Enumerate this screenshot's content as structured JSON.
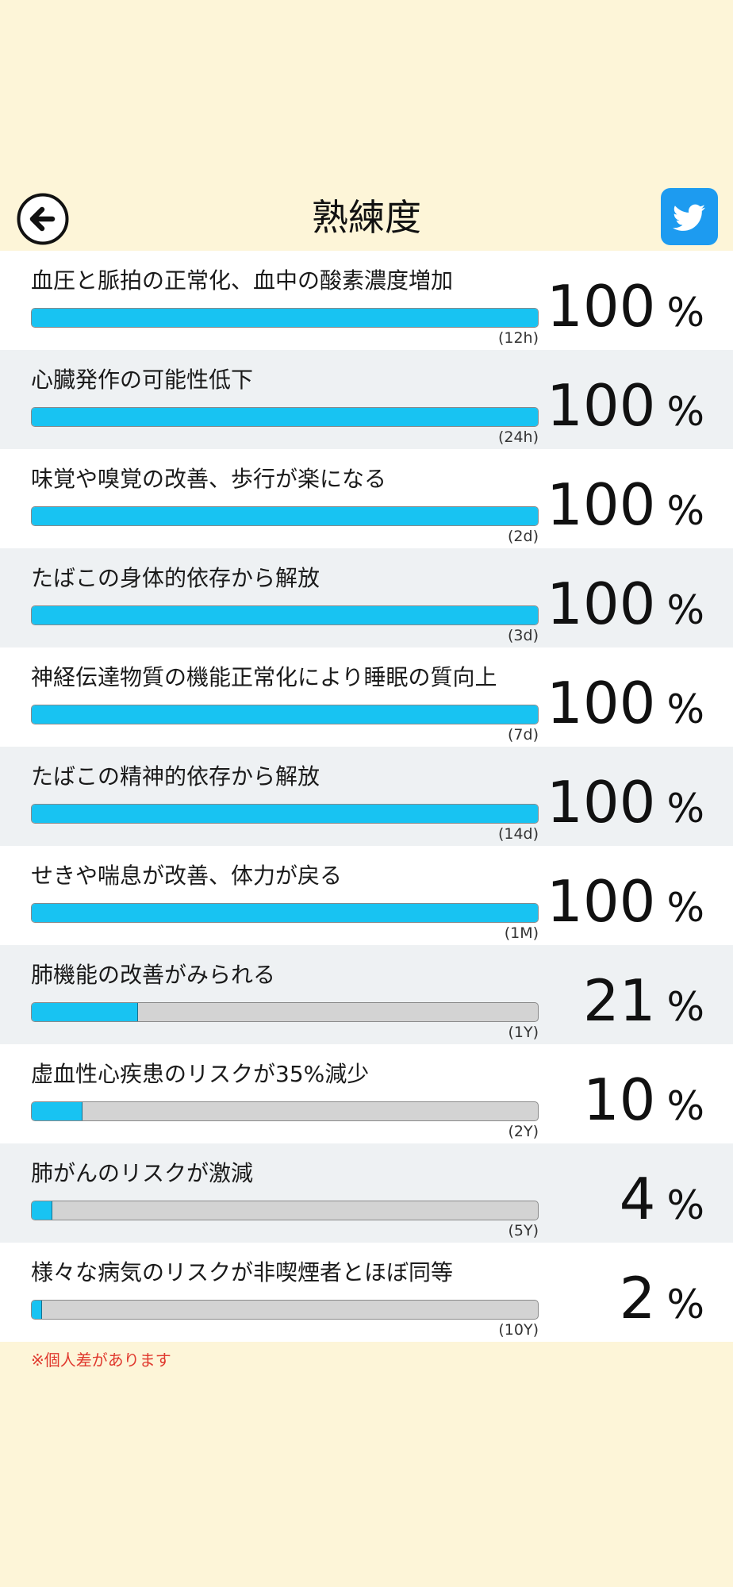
{
  "header": {
    "title": "熟練度"
  },
  "colors": {
    "background": "#fdf5d8",
    "bar_fill": "#18c3f2",
    "bar_track": "#d3d3d3",
    "twitter": "#1d9bf0",
    "note": "#e03a2f"
  },
  "icons": {
    "back": "arrow-left-circle-icon",
    "share": "twitter-bird-icon"
  },
  "unit": "%",
  "items": [
    {
      "label": "血圧と脈拍の正常化、血中の酸素濃度増加",
      "period": "(12h)",
      "percent": "100",
      "progress": 1.0
    },
    {
      "label": "心臓発作の可能性低下",
      "period": "(24h)",
      "percent": "100",
      "progress": 1.0
    },
    {
      "label": "味覚や嗅覚の改善、歩行が楽になる",
      "period": "(2d)",
      "percent": "100",
      "progress": 1.0
    },
    {
      "label": "たばこの身体的依存から解放",
      "period": "(3d)",
      "percent": "100",
      "progress": 1.0
    },
    {
      "label": "神経伝達物質の機能正常化により睡眠の質向上",
      "period": "(7d)",
      "percent": "100",
      "progress": 1.0
    },
    {
      "label": "たばこの精神的依存から解放",
      "period": "(14d)",
      "percent": "100",
      "progress": 1.0
    },
    {
      "label": "せきや喘息が改善、体力が戻る",
      "period": "(1M)",
      "percent": "100",
      "progress": 1.0
    },
    {
      "label": "肺機能の改善がみられる",
      "period": "(1Y)",
      "percent": "21",
      "progress": 0.21
    },
    {
      "label": "虚血性心疾患のリスクが35%減少",
      "period": "(2Y)",
      "percent": "10",
      "progress": 0.1
    },
    {
      "label": "肺がんのリスクが激減",
      "period": "(5Y)",
      "percent": "4",
      "progress": 0.04
    },
    {
      "label": "様々な病気のリスクが非喫煙者とほぼ同等",
      "period": "(10Y)",
      "percent": "2",
      "progress": 0.02
    }
  ],
  "note": "※個人差があります"
}
